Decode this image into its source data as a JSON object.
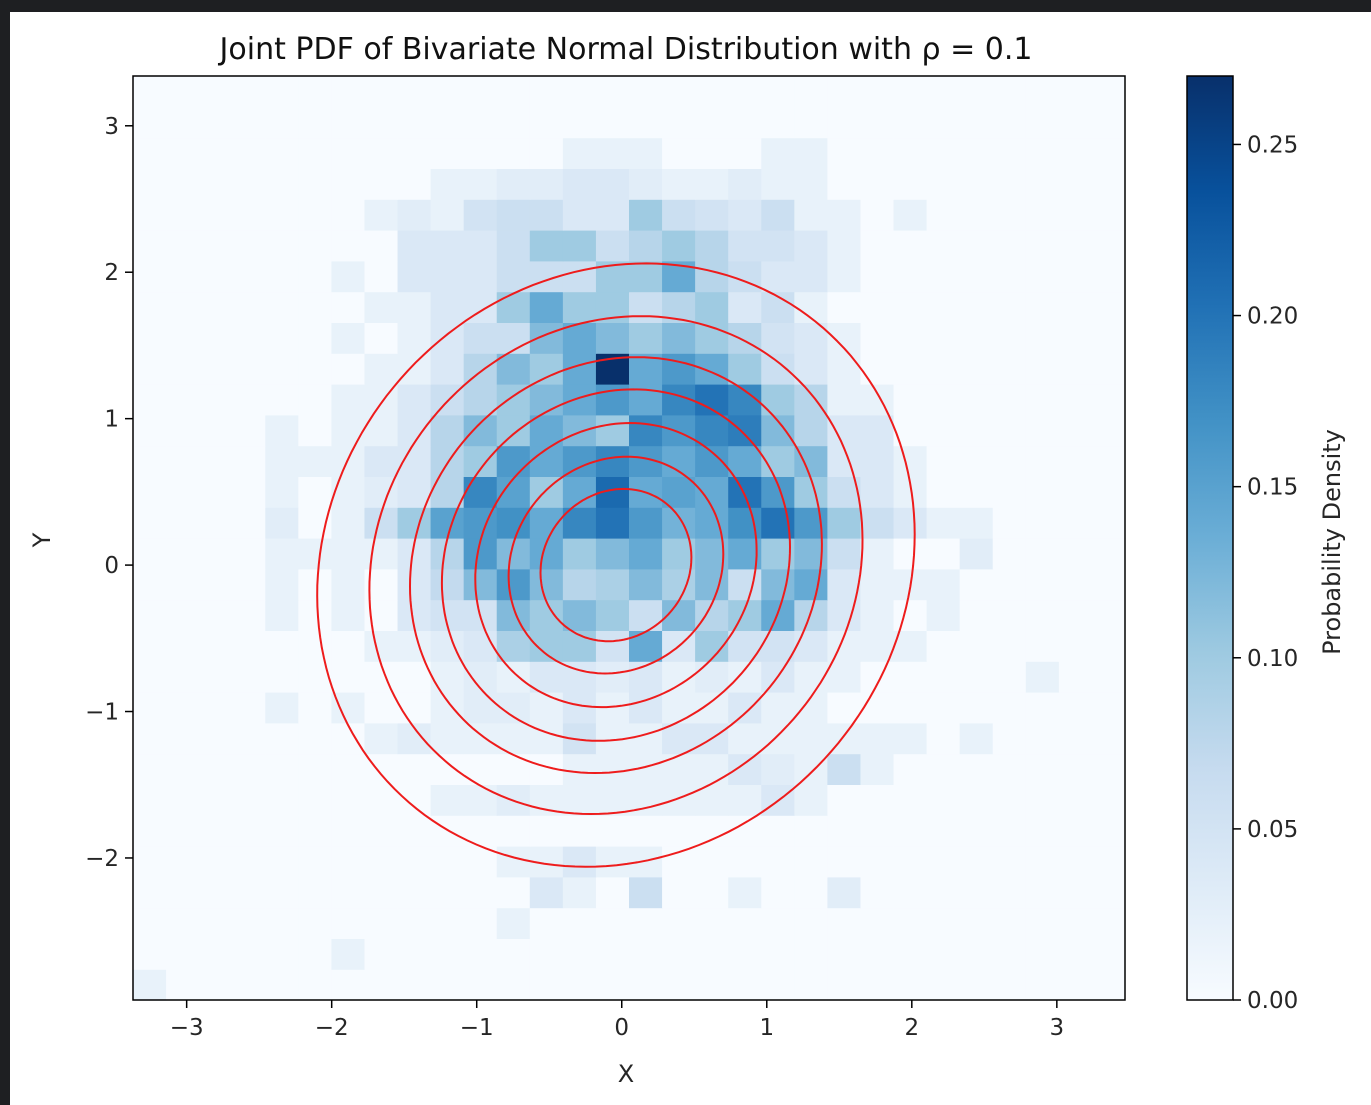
{
  "chart_data": {
    "type": "heatmap",
    "title": "Joint PDF of Bivariate Normal Distribution with ρ = 0.1",
    "xlabel": "X",
    "ylabel": "Y",
    "xlim": [
      -3.37,
      3.47
    ],
    "ylim": [
      -2.97,
      3.34
    ],
    "xticks": [
      -3,
      -2,
      -1,
      0,
      1,
      2,
      3
    ],
    "yticks": [
      -2,
      -1,
      0,
      1,
      2,
      3
    ],
    "xtick_labels": [
      "−3",
      "−2",
      "−1",
      "0",
      "1",
      "2",
      "3"
    ],
    "ytick_labels": [
      "−2",
      "−1",
      "0",
      "1",
      "2",
      "3"
    ],
    "grid": false,
    "histogram": {
      "bins": 30,
      "x_range": [
        -3.37,
        3.47
      ],
      "y_range": [
        -2.97,
        3.34
      ],
      "cmap": "Blues",
      "cmap_stops": [
        "#f7fbff",
        "#deebf7",
        "#c6dbef",
        "#9ecae1",
        "#6baed6",
        "#4292c6",
        "#2171b5",
        "#08519c",
        "#08306b"
      ],
      "counts": [
        [
          0.02,
          0,
          0,
          0,
          0,
          0,
          0,
          0,
          0,
          0,
          0,
          0,
          0,
          0,
          0,
          0,
          0,
          0,
          0,
          0,
          0,
          0,
          0,
          0,
          0,
          0,
          0,
          0,
          0,
          0
        ],
        [
          0,
          0,
          0,
          0,
          0,
          0,
          0.02,
          0,
          0,
          0,
          0,
          0,
          0,
          0,
          0,
          0,
          0,
          0,
          0,
          0,
          0,
          0,
          0,
          0,
          0,
          0,
          0,
          0,
          0,
          0
        ],
        [
          0,
          0,
          0,
          0,
          0,
          0,
          0,
          0,
          0,
          0,
          0,
          0.02,
          0,
          0,
          0,
          0,
          0,
          0,
          0,
          0,
          0,
          0,
          0,
          0,
          0,
          0,
          0,
          0,
          0,
          0
        ],
        [
          0,
          0,
          0,
          0,
          0,
          0,
          0,
          0,
          0,
          0,
          0,
          0,
          0.04,
          0.02,
          0,
          0.06,
          0,
          0,
          0.02,
          0,
          0,
          0.03,
          0,
          0,
          0,
          0,
          0,
          0,
          0,
          0
        ],
        [
          0,
          0,
          0,
          0,
          0,
          0,
          0,
          0,
          0,
          0,
          0,
          0.02,
          0.02,
          0.04,
          0.02,
          0.02,
          0,
          0,
          0,
          0,
          0,
          0,
          0,
          0,
          0,
          0,
          0,
          0,
          0,
          0
        ],
        [
          0,
          0,
          0,
          0,
          0,
          0,
          0,
          0,
          0,
          0,
          0,
          0,
          0,
          0,
          0,
          0,
          0,
          0,
          0,
          0,
          0,
          0,
          0,
          0,
          0,
          0,
          0,
          0,
          0,
          0
        ],
        [
          0,
          0,
          0,
          0,
          0,
          0,
          0,
          0,
          0,
          0.02,
          0.02,
          0.03,
          0.02,
          0.02,
          0.02,
          0.02,
          0.02,
          0.02,
          0.02,
          0.04,
          0.02,
          0,
          0,
          0,
          0,
          0,
          0,
          0,
          0,
          0
        ],
        [
          0,
          0,
          0,
          0,
          0,
          0,
          0,
          0,
          0,
          0,
          0,
          0,
          0,
          0.02,
          0.02,
          0.02,
          0.02,
          0.02,
          0.04,
          0.03,
          0.02,
          0.06,
          0.02,
          0,
          0,
          0,
          0,
          0,
          0,
          0
        ],
        [
          0,
          0,
          0,
          0,
          0,
          0,
          0,
          0.02,
          0.03,
          0.02,
          0.02,
          0.02,
          0.02,
          0.05,
          0.02,
          0.02,
          0.04,
          0.04,
          0.02,
          0.02,
          0.02,
          0.02,
          0.02,
          0.02,
          0,
          0.02,
          0,
          0,
          0,
          0
        ],
        [
          0,
          0,
          0,
          0,
          0.02,
          0,
          0.02,
          0,
          0,
          0.02,
          0.03,
          0.03,
          0.02,
          0.04,
          0.02,
          0.04,
          0.02,
          0.02,
          0.04,
          0.02,
          0.02,
          0,
          0,
          0,
          0,
          0,
          0,
          0,
          0,
          0
        ],
        [
          0,
          0,
          0,
          0,
          0,
          0,
          0,
          0,
          0,
          0.02,
          0.03,
          0.02,
          0.04,
          0.04,
          0.03,
          0.04,
          0.02,
          0.03,
          0.02,
          0.04,
          0.02,
          0.02,
          0,
          0,
          0,
          0,
          0,
          0.02,
          0,
          0
        ],
        [
          0,
          0,
          0,
          0,
          0,
          0,
          0,
          0.02,
          0.02,
          0.03,
          0.04,
          0.09,
          0.1,
          0.1,
          0.05,
          0.14,
          0.04,
          0.1,
          0.05,
          0.05,
          0.04,
          0.02,
          0.02,
          0.02,
          0,
          0,
          0,
          0,
          0,
          0
        ],
        [
          0,
          0,
          0,
          0,
          0.02,
          0,
          0.02,
          0,
          0.04,
          0.05,
          0.05,
          0.12,
          0.1,
          0.12,
          0.1,
          0.06,
          0.12,
          0.08,
          0.1,
          0.14,
          0.08,
          0.04,
          0.02,
          0,
          0.02,
          0,
          0,
          0,
          0,
          0
        ],
        [
          0,
          0,
          0,
          0,
          0.02,
          0,
          0.02,
          0,
          0.04,
          0.07,
          0.12,
          0.16,
          0.12,
          0.08,
          0.09,
          0.12,
          0.09,
          0.12,
          0.06,
          0.12,
          0.14,
          0.04,
          0.02,
          0.02,
          0.02,
          0,
          0,
          0,
          0,
          0
        ],
        [
          0,
          0,
          0,
          0,
          0.02,
          0.02,
          0.02,
          0.02,
          0.04,
          0.08,
          0.16,
          0.12,
          0.14,
          0.1,
          0.12,
          0.14,
          0.1,
          0.12,
          0.14,
          0.1,
          0.12,
          0.06,
          0.02,
          0,
          0,
          0.03,
          0,
          0,
          0,
          0
        ],
        [
          0,
          0,
          0,
          0,
          0.03,
          0,
          0.02,
          0.06,
          0.1,
          0.15,
          0.16,
          0.17,
          0.14,
          0.18,
          0.2,
          0.16,
          0.13,
          0.14,
          0.17,
          0.2,
          0.16,
          0.1,
          0.06,
          0.04,
          0.02,
          0.02,
          0,
          0,
          0,
          0
        ],
        [
          0,
          0,
          0,
          0,
          0.02,
          0,
          0.02,
          0.03,
          0.04,
          0.08,
          0.18,
          0.15,
          0.1,
          0.14,
          0.21,
          0.14,
          0.15,
          0.14,
          0.2,
          0.16,
          0.1,
          0.06,
          0.04,
          0.02,
          0,
          0,
          0,
          0,
          0,
          0
        ],
        [
          0,
          0,
          0,
          0,
          0.02,
          0.02,
          0.02,
          0.04,
          0.04,
          0.08,
          0.1,
          0.16,
          0.14,
          0.16,
          0.18,
          0.16,
          0.14,
          0.16,
          0.14,
          0.1,
          0.12,
          0.04,
          0.04,
          0.02,
          0,
          0,
          0,
          0,
          0,
          0
        ],
        [
          0,
          0,
          0,
          0,
          0.02,
          0,
          0.02,
          0.02,
          0.04,
          0.08,
          0.12,
          0.1,
          0.14,
          0.12,
          0.1,
          0.18,
          0.16,
          0.18,
          0.19,
          0.12,
          0.08,
          0.04,
          0.04,
          0,
          0,
          0,
          0,
          0,
          0,
          0
        ],
        [
          0,
          0,
          0,
          0,
          0,
          0,
          0.02,
          0.02,
          0.04,
          0.06,
          0.08,
          0.1,
          0.12,
          0.14,
          0.16,
          0.14,
          0.18,
          0.2,
          0.18,
          0.1,
          0.08,
          0.02,
          0.02,
          0,
          0,
          0,
          0,
          0,
          0,
          0
        ],
        [
          0,
          0,
          0,
          0,
          0,
          0,
          0,
          0.02,
          0.02,
          0.04,
          0.08,
          0.12,
          0.1,
          0.14,
          0.27,
          0.14,
          0.16,
          0.14,
          0.1,
          0.06,
          0.04,
          0.02,
          0,
          0,
          0,
          0,
          0,
          0,
          0,
          0
        ],
        [
          0,
          0,
          0,
          0,
          0,
          0,
          0.02,
          0,
          0.02,
          0.04,
          0.06,
          0.06,
          0.12,
          0.14,
          0.12,
          0.1,
          0.12,
          0.1,
          0.08,
          0.05,
          0.04,
          0.02,
          0,
          0,
          0,
          0,
          0,
          0,
          0,
          0
        ],
        [
          0,
          0,
          0,
          0,
          0,
          0,
          0,
          0.02,
          0.02,
          0.04,
          0.04,
          0.1,
          0.14,
          0.1,
          0.1,
          0.06,
          0.08,
          0.1,
          0.04,
          0.06,
          0.02,
          0,
          0,
          0,
          0,
          0,
          0,
          0,
          0,
          0
        ],
        [
          0,
          0,
          0,
          0,
          0,
          0,
          0.02,
          0,
          0.04,
          0.04,
          0.04,
          0.06,
          0.06,
          0.06,
          0.1,
          0.1,
          0.14,
          0.08,
          0.06,
          0.04,
          0.04,
          0.02,
          0,
          0,
          0,
          0,
          0,
          0,
          0,
          0
        ],
        [
          0,
          0,
          0,
          0,
          0,
          0,
          0,
          0,
          0.04,
          0.04,
          0.04,
          0.06,
          0.1,
          0.1,
          0.06,
          0.08,
          0.1,
          0.08,
          0.05,
          0.05,
          0.04,
          0.02,
          0,
          0,
          0,
          0,
          0,
          0,
          0,
          0
        ],
        [
          0,
          0,
          0,
          0,
          0,
          0,
          0,
          0.02,
          0.03,
          0.02,
          0.05,
          0.06,
          0.06,
          0.04,
          0.04,
          0.1,
          0.06,
          0.05,
          0.04,
          0.06,
          0.02,
          0.02,
          0,
          0.02,
          0,
          0,
          0,
          0,
          0,
          0
        ],
        [
          0,
          0,
          0,
          0,
          0,
          0,
          0,
          0,
          0,
          0.02,
          0.02,
          0.03,
          0.03,
          0.04,
          0.04,
          0.03,
          0.02,
          0.02,
          0.03,
          0.02,
          0.02,
          0,
          0,
          0,
          0,
          0,
          0,
          0,
          0,
          0
        ],
        [
          0,
          0,
          0,
          0,
          0,
          0,
          0,
          0,
          0,
          0,
          0,
          0,
          0,
          0.02,
          0.02,
          0.02,
          0,
          0,
          0,
          0.02,
          0.02,
          0,
          0,
          0,
          0,
          0,
          0,
          0,
          0,
          0
        ],
        [
          0,
          0,
          0,
          0,
          0,
          0,
          0,
          0,
          0,
          0,
          0,
          0,
          0,
          0,
          0,
          0,
          0,
          0,
          0,
          0,
          0,
          0,
          0,
          0,
          0,
          0,
          0,
          0,
          0,
          0
        ],
        [
          0,
          0,
          0,
          0,
          0,
          0,
          0,
          0,
          0,
          0,
          0,
          0,
          0,
          0,
          0,
          0,
          0,
          0,
          0,
          0,
          0,
          0,
          0,
          0,
          0,
          0,
          0,
          0,
          0,
          0
        ]
      ]
    },
    "contours": {
      "color": "#ee1c1c",
      "center": [
        -0.04,
        0.0
      ],
      "sigma_x": 1.0,
      "sigma_y": 1.0,
      "rho": 0.1,
      "levels_radius": [
        0.52,
        0.74,
        0.97,
        1.2,
        1.42,
        1.7,
        2.06
      ]
    },
    "colorbar": {
      "label": "Probability Density",
      "range": [
        0,
        0.27
      ],
      "ticks": [
        0.0,
        0.05,
        0.1,
        0.15,
        0.2,
        0.25
      ],
      "tick_labels": [
        "0.00",
        "0.05",
        "0.10",
        "0.15",
        "0.20",
        "0.25"
      ]
    }
  }
}
